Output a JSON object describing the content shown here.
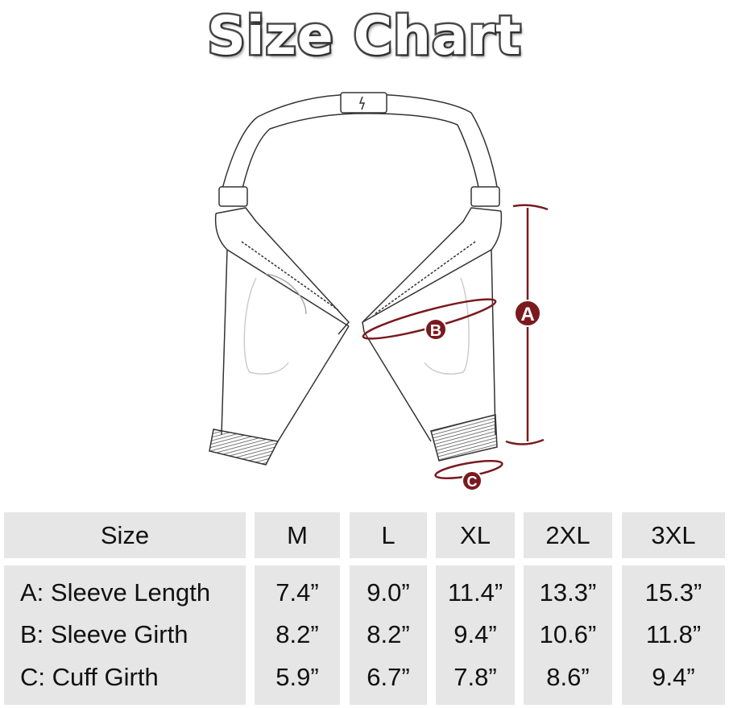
{
  "title": "Size Chart",
  "diagram": {
    "labels": {
      "a": "A",
      "b": "B",
      "c": "C"
    },
    "accent_color": "#7a1a1f"
  },
  "table": {
    "header": [
      "Size",
      "M",
      "L",
      "XL",
      "2XL",
      "3XL"
    ],
    "rows": [
      {
        "label": "A: Sleeve Length",
        "values": [
          "7.4”",
          "9.0”",
          "11.4”",
          "13.3”",
          "15.3”"
        ]
      },
      {
        "label": "B: Sleeve Girth",
        "values": [
          "8.2”",
          "8.2”",
          "9.4”",
          "10.6”",
          "11.8”"
        ]
      },
      {
        "label": "C: Cuff Girth",
        "values": [
          "5.9”",
          "6.7”",
          "7.8”",
          "8.6”",
          "9.4”"
        ]
      }
    ]
  }
}
